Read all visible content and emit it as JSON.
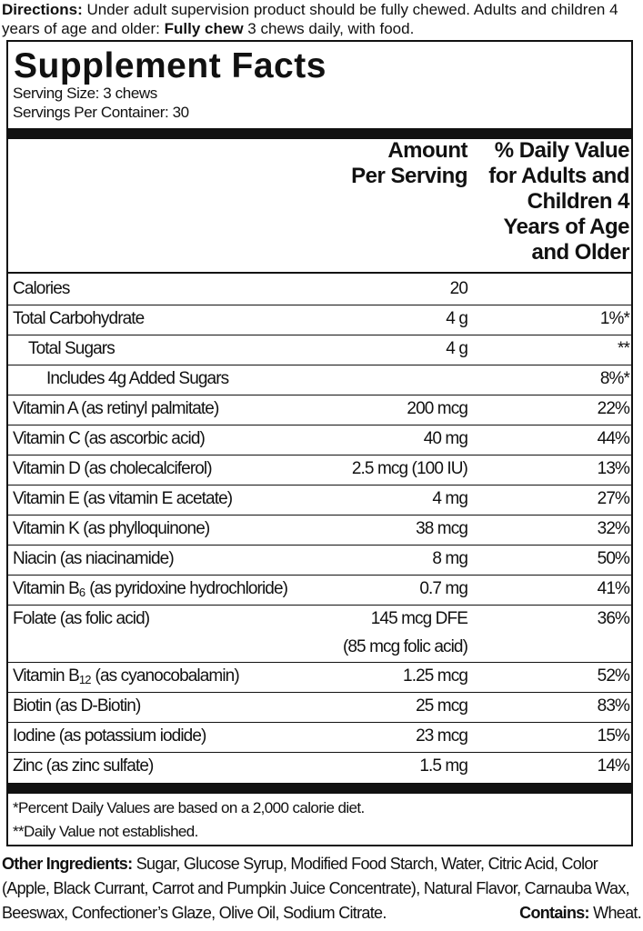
{
  "directions": {
    "label": "Directions:",
    "text": "Under adult supervision product should be fully chewed. Adults and children 4 years of age and older:",
    "bold": "Fully chew",
    "text2": "3 chews daily, with food."
  },
  "facts": {
    "title": "Supplement Facts",
    "serving_size": "Serving Size: 3 chews",
    "servings": "Servings Per Container: 30",
    "amount_header": [
      "Amount",
      "Per Serving"
    ],
    "dv_header": [
      "% Daily Value",
      "for Adults and",
      "Children 4",
      "Years of Age",
      "and Older"
    ],
    "rows": [
      {
        "name": "Calories",
        "amount": "20"
      },
      {
        "name": "Total Carbohydrate",
        "amount": "4 g",
        "dv": "1%*"
      },
      {
        "name": "Total Sugars",
        "amount": "4 g",
        "dv": "**"
      },
      {
        "name": "Includes 4g Added Sugars",
        "dv": "8%*"
      },
      {
        "name": "Vitamin A (as retinyl palmitate)",
        "amount": "200 mcg",
        "dv": "22%"
      },
      {
        "name": "Vitamin C (as ascorbic acid)",
        "amount": "40 mg",
        "dv": "44%"
      },
      {
        "name": "Vitamin D (as cholecalciferol)",
        "amount": "2.5 mcg (100 IU)",
        "dv": "13%"
      },
      {
        "name": "Vitamin E (as vitamin E acetate)",
        "amount": "4 mg",
        "dv": "27%"
      },
      {
        "name": "Vitamin K (as phylloquinone)",
        "amount": "38 mcg",
        "dv": "32%"
      },
      {
        "name": "Niacin (as niacinamide)",
        "amount": "8 mg",
        "dv": "50%"
      },
      {
        "name": "Vitamin B",
        "sub": "6",
        "name_rest": "(as pyridoxine hydrochloride)",
        "amount": "0.7 mg",
        "dv": "41%"
      },
      {
        "name": "Folate (as folic acid)",
        "amount": "145 mcg DFE",
        "amount2": "(85 mcg folic acid)",
        "dv": "36%"
      },
      {
        "name": "Vitamin B",
        "sub": "12",
        "name_rest": "(as cyanocobalamin)",
        "amount": "1.25 mcg",
        "dv": "52%"
      },
      {
        "name": "Biotin (as D-Biotin)",
        "amount": "25 mcg",
        "dv": "83%"
      },
      {
        "name": "Iodine (as potassium iodide)",
        "amount": "23 mcg",
        "dv": "15%"
      },
      {
        "name": "Zinc (as zinc sulfate)",
        "amount": "1.5 mg",
        "dv": "14%"
      }
    ],
    "footnotes": [
      "*Percent Daily Values are based on a 2,000 calorie diet.",
      "**Daily Value not established."
    ]
  },
  "other": {
    "label": "Other Ingredients:",
    "text": "Sugar, Glucose Syrup, Modified Food Starch, Water, Citric Acid, Color (Apple, Black Currant, Carrot and Pumpkin Juice Concentrate), Natural Flavor, Carnauba Wax, Beeswax, Confectioner’s Glaze, Olive Oil, Sodium Citrate.",
    "contains_label": "Contains:",
    "contains": "Wheat."
  }
}
